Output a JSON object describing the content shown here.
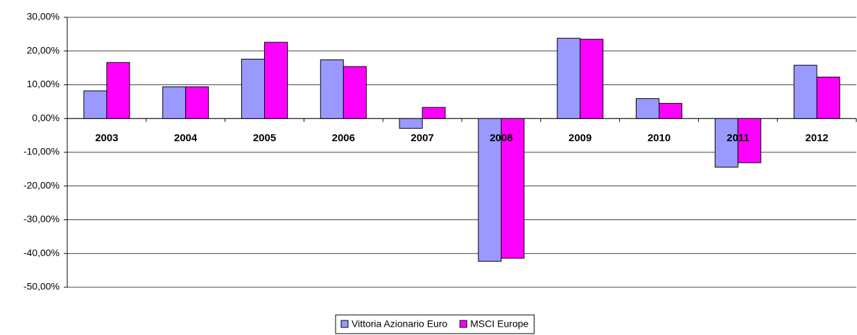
{
  "chart_data": {
    "type": "bar",
    "categories": [
      "2003",
      "2004",
      "2005",
      "2006",
      "2007",
      "2008",
      "2009",
      "2010",
      "2011",
      "2012"
    ],
    "series": [
      {
        "name": "Vittoria Azionario Euro",
        "color": "#9999ff",
        "values": [
          8.2,
          9.4,
          17.6,
          17.4,
          -2.9,
          -42.3,
          23.8,
          5.9,
          -14.4,
          15.8
        ]
      },
      {
        "name": "MSCI Europe",
        "color": "#ff00ff",
        "values": [
          16.6,
          9.4,
          22.6,
          15.4,
          3.3,
          -41.4,
          23.5,
          4.5,
          -13.1,
          12.3
        ]
      }
    ],
    "ylim": [
      -50,
      30
    ],
    "yticks": [
      {
        "value": -50,
        "label": "-50,00%"
      },
      {
        "value": -40,
        "label": "-40,00%"
      },
      {
        "value": -30,
        "label": "-30,00%"
      },
      {
        "value": -20,
        "label": "-20,00%"
      },
      {
        "value": -10,
        "label": "-10,00%"
      },
      {
        "value": 0,
        "label": "0,00%"
      },
      {
        "value": 10,
        "label": "10,00%"
      },
      {
        "value": 20,
        "label": "20,00%"
      },
      {
        "value": 30,
        "label": "30,00%"
      }
    ],
    "grid": true,
    "legend": "bottom"
  }
}
